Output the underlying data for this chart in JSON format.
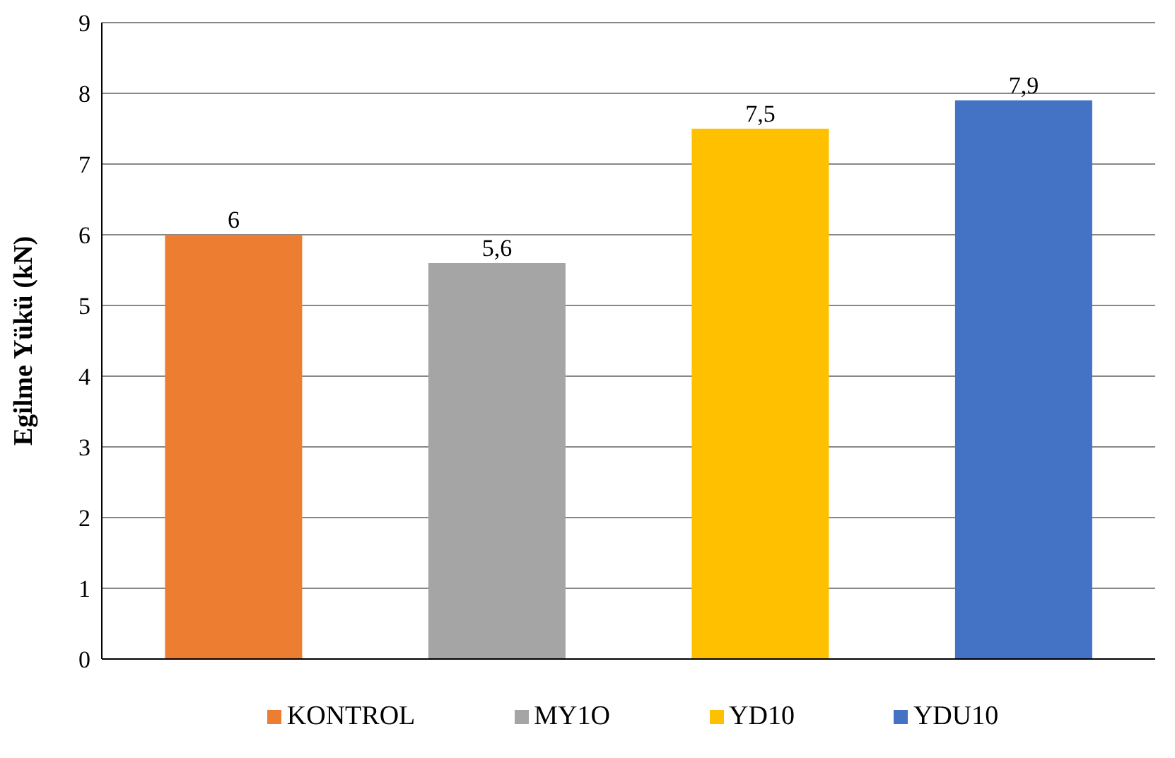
{
  "chart_data": {
    "type": "bar",
    "ylabel": "Egilme Yükü (kN)",
    "categories": [
      null,
      null,
      null,
      null
    ],
    "series": [
      {
        "name": "KONTROL",
        "color": "#ed7d31",
        "values": [
          6,
          null,
          null,
          null
        ],
        "value_labels": [
          "6",
          null,
          null,
          null
        ]
      },
      {
        "name": "MY1O",
        "color": "#a5a5a5",
        "values": [
          null,
          5.6,
          null,
          null
        ],
        "value_labels": [
          null,
          "5,6",
          null,
          null
        ]
      },
      {
        "name": "YD10",
        "color": "#ffc000",
        "values": [
          null,
          null,
          7.5,
          null
        ],
        "value_labels": [
          null,
          null,
          "7,5",
          null
        ]
      },
      {
        "name": "YDU10",
        "color": "#4472c4",
        "values": [
          null,
          null,
          null,
          7.9
        ],
        "value_labels": [
          null,
          null,
          null,
          "7,9"
        ]
      }
    ],
    "ylim": [
      0,
      9
    ],
    "yticks": [
      0,
      1,
      2,
      3,
      4,
      5,
      6,
      7,
      8,
      9
    ],
    "grid": "y",
    "legend": "bottom"
  }
}
